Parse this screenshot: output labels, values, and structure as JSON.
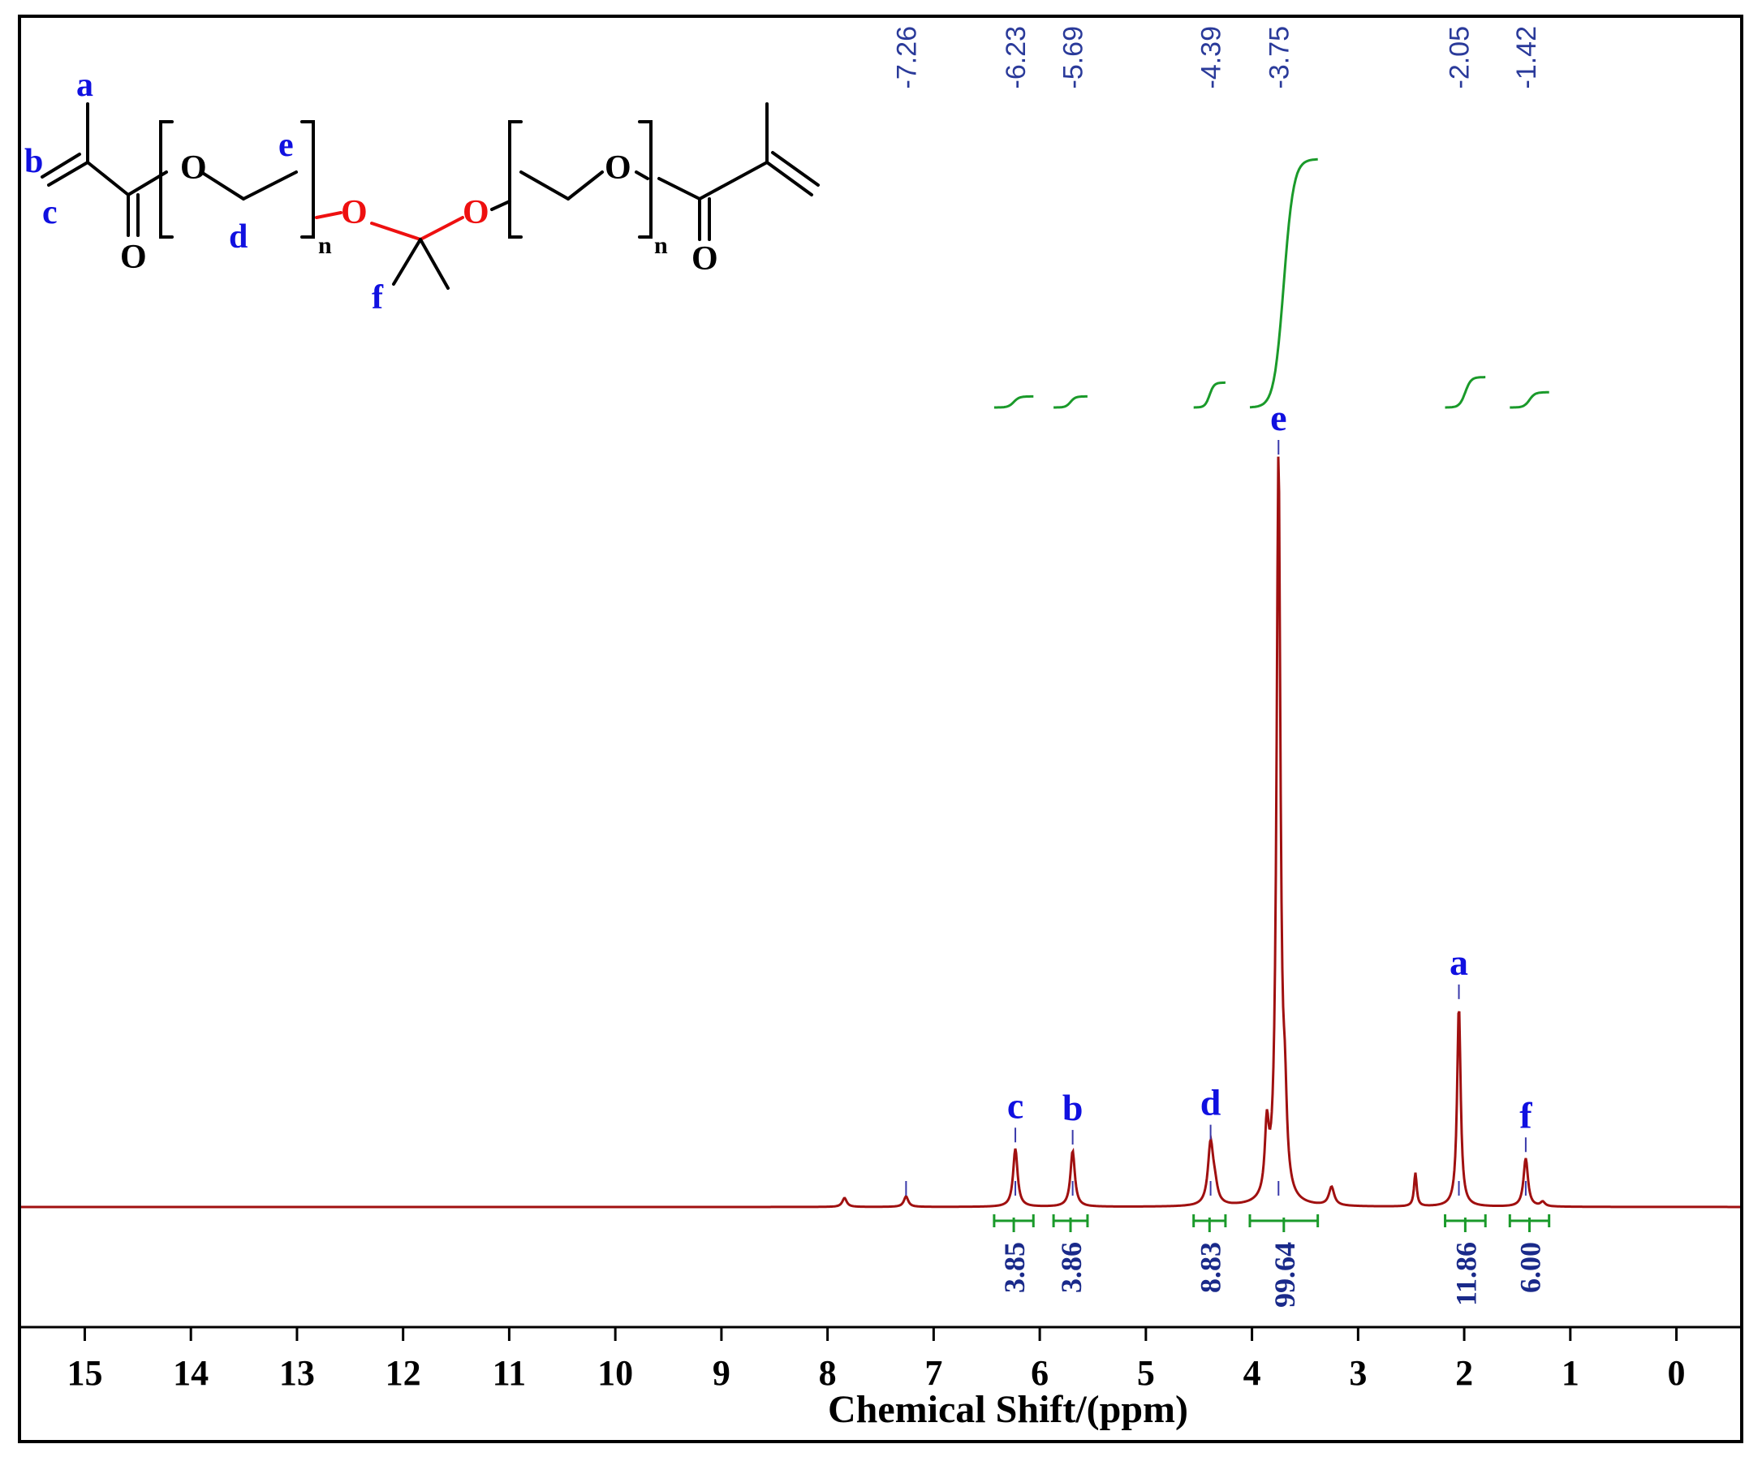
{
  "chart_data": {
    "type": "line",
    "title": "",
    "xlabel": "Chemical Shift/(ppm)",
    "ylabel": "",
    "xlim": [
      15.6,
      -0.6
    ],
    "x_reversed": true,
    "grid": false,
    "x_ticks": [
      "15",
      "14",
      "13",
      "12",
      "11",
      "10",
      "9",
      "8",
      "7",
      "6",
      "5",
      "4",
      "3",
      "2",
      "1",
      "0"
    ],
    "x_tick_values": [
      15,
      14,
      13,
      12,
      11,
      10,
      9,
      8,
      7,
      6,
      5,
      4,
      3,
      2,
      1,
      0
    ],
    "shift_labels": [
      {
        "text": "-7.26",
        "ppm": 7.26
      },
      {
        "text": "-6.23",
        "ppm": 6.23
      },
      {
        "text": "-5.69",
        "ppm": 5.69
      },
      {
        "text": "-4.39",
        "ppm": 4.39
      },
      {
        "text": "-3.75",
        "ppm": 3.75
      },
      {
        "text": "-2.05",
        "ppm": 2.05
      },
      {
        "text": "-1.42",
        "ppm": 1.42
      }
    ],
    "peaks": [
      {
        "ppm": 7.84,
        "height": 0.012,
        "width": 0.025
      },
      {
        "ppm": 7.26,
        "height": 0.014,
        "width": 0.025
      },
      {
        "ppm": 6.23,
        "height": 0.078,
        "width": 0.025
      },
      {
        "ppm": 5.69,
        "height": 0.075,
        "width": 0.025
      },
      {
        "ppm": 4.39,
        "height": 0.082,
        "width": 0.03
      },
      {
        "ppm": 4.35,
        "height": 0.02,
        "width": 0.03
      },
      {
        "ppm": 3.86,
        "height": 0.09,
        "width": 0.022
      },
      {
        "ppm": 3.75,
        "height": 1.0,
        "width": 0.022
      },
      {
        "ppm": 3.69,
        "height": 0.1,
        "width": 0.022
      },
      {
        "ppm": 3.25,
        "height": 0.025,
        "width": 0.03
      },
      {
        "ppm": 2.46,
        "height": 0.045,
        "width": 0.015
      },
      {
        "ppm": 2.05,
        "height": 0.27,
        "width": 0.02
      },
      {
        "ppm": 1.42,
        "height": 0.065,
        "width": 0.025
      },
      {
        "ppm": 1.26,
        "height": 0.006,
        "width": 0.025
      }
    ],
    "peak_assignments": [
      {
        "letter": "c",
        "ppm": 6.23,
        "height": 0.078
      },
      {
        "letter": "b",
        "ppm": 5.69,
        "height": 0.075
      },
      {
        "letter": "d",
        "ppm": 4.39,
        "height": 0.082
      },
      {
        "letter": "e",
        "ppm": 3.75,
        "height": 1.0
      },
      {
        "letter": "a",
        "ppm": 2.05,
        "height": 0.27
      },
      {
        "letter": "f",
        "ppm": 1.42,
        "height": 0.065
      }
    ],
    "integrals": [
      {
        "from": 6.43,
        "to": 6.06,
        "value": "3.85",
        "rise": 0.4
      },
      {
        "from": 5.87,
        "to": 5.55,
        "value": "3.86",
        "rise": 0.4
      },
      {
        "from": 4.55,
        "to": 4.25,
        "value": "8.83",
        "rise": 0.9
      },
      {
        "from": 4.02,
        "to": 3.38,
        "value": "99.64",
        "rise": 9.0
      },
      {
        "from": 2.18,
        "to": 1.8,
        "value": "11.86",
        "rise": 1.1
      },
      {
        "from": 1.57,
        "to": 1.2,
        "value": "6.00",
        "rise": 0.55
      }
    ]
  },
  "structure": {
    "atom_O": "O",
    "subscript_n": "n",
    "letters": {
      "a": "a",
      "b": "b",
      "c": "c",
      "d": "d",
      "e": "e",
      "f": "f"
    }
  },
  "colors": {
    "spectrum": "#a01010",
    "integral": "#1a9a2a",
    "peak_letter": "#1010e0",
    "shift_label": "#2a3a9a",
    "highlight_atom": "#ee1010"
  }
}
